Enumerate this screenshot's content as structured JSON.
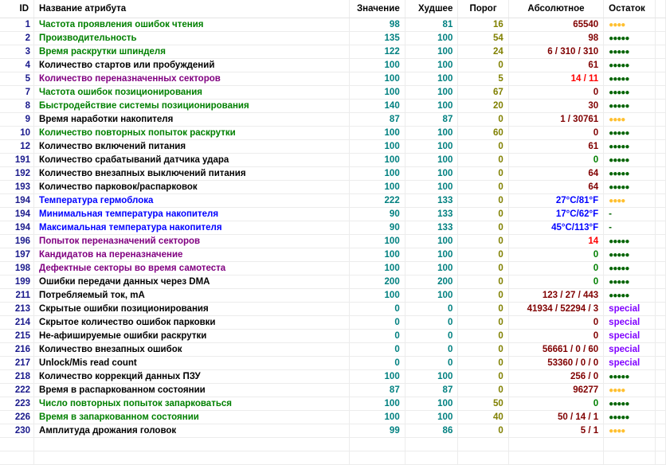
{
  "columns": {
    "id": "ID",
    "name": "Название атрибута",
    "value": "Значение",
    "worst": "Худшее",
    "threshold": "Порог",
    "raw": "Абсолютное",
    "remaining": "Остаток"
  },
  "colors": {
    "green_name": "#008000",
    "purple_name": "#800080",
    "blue_name": "#0000ff",
    "value": "#008080",
    "threshold": "#808000",
    "raw": "#800000",
    "good_dots": "#006400",
    "warn_dots": "#ffc030",
    "special": "#8000ff"
  },
  "rows": [
    {
      "id": "1",
      "name": "Частота проявления ошибок чтения",
      "nc": "green",
      "value": "98",
      "worst": "81",
      "threshold": "16",
      "raw": "65540",
      "rc": "dark",
      "rest": "●●●●",
      "rs": "orange"
    },
    {
      "id": "2",
      "name": "Производительность",
      "nc": "green",
      "value": "135",
      "worst": "100",
      "threshold": "54",
      "raw": "98",
      "rc": "dark",
      "rest": "●●●●●",
      "rs": "green"
    },
    {
      "id": "3",
      "name": "Время раскрутки шпинделя",
      "nc": "green",
      "value": "122",
      "worst": "100",
      "threshold": "24",
      "raw": "6 / 310 / 310",
      "rc": "dark",
      "rest": "●●●●●",
      "rs": "green"
    },
    {
      "id": "4",
      "name": "Количество стартов или пробуждений",
      "nc": "black",
      "value": "100",
      "worst": "100",
      "threshold": "0",
      "raw": "61",
      "rc": "dark",
      "rest": "●●●●●",
      "rs": "green"
    },
    {
      "id": "5",
      "name": "Количество переназначенных секторов",
      "nc": "purple",
      "value": "100",
      "worst": "100",
      "threshold": "5",
      "raw": "14 / 11",
      "rc": "red",
      "rest": "●●●●●",
      "rs": "green"
    },
    {
      "id": "7",
      "name": "Частота ошибок позиционирования",
      "nc": "green",
      "value": "100",
      "worst": "100",
      "threshold": "67",
      "raw": "0",
      "rc": "dark",
      "rest": "●●●●●",
      "rs": "green"
    },
    {
      "id": "8",
      "name": "Быстродействие системы позиционирования",
      "nc": "green",
      "value": "140",
      "worst": "100",
      "threshold": "20",
      "raw": "30",
      "rc": "dark",
      "rest": "●●●●●",
      "rs": "green"
    },
    {
      "id": "9",
      "name": "Время наработки накопителя",
      "nc": "black",
      "value": "87",
      "worst": "87",
      "threshold": "0",
      "raw": "1 / 30761",
      "rc": "dark",
      "rest": "●●●●",
      "rs": "orange"
    },
    {
      "id": "10",
      "name": "Количество повторных попыток раскрутки",
      "nc": "green",
      "value": "100",
      "worst": "100",
      "threshold": "60",
      "raw": "0",
      "rc": "dark",
      "rest": "●●●●●",
      "rs": "green"
    },
    {
      "id": "12",
      "name": "Количество включений питания",
      "nc": "black",
      "value": "100",
      "worst": "100",
      "threshold": "0",
      "raw": "61",
      "rc": "dark",
      "rest": "●●●●●",
      "rs": "green"
    },
    {
      "id": "191",
      "name": "Количество срабатываний датчика удара",
      "nc": "black",
      "value": "100",
      "worst": "100",
      "threshold": "0",
      "raw": "0",
      "rc": "green",
      "rest": "●●●●●",
      "rs": "green"
    },
    {
      "id": "192",
      "name": "Количество внезапных выключений питания",
      "nc": "black",
      "value": "100",
      "worst": "100",
      "threshold": "0",
      "raw": "64",
      "rc": "dark",
      "rest": "●●●●●",
      "rs": "green"
    },
    {
      "id": "193",
      "name": "Количество парковок/распарковок",
      "nc": "black",
      "value": "100",
      "worst": "100",
      "threshold": "0",
      "raw": "64",
      "rc": "dark",
      "rest": "●●●●●",
      "rs": "green"
    },
    {
      "id": "194",
      "name": "Температура гермоблока",
      "nc": "blue",
      "value": "222",
      "worst": "133",
      "threshold": "0",
      "raw": "27°C/81°F",
      "rc": "blue",
      "rest": "●●●●",
      "rs": "orange"
    },
    {
      "id": "194",
      "name": "Минимальная температура накопителя",
      "nc": "blue",
      "value": "90",
      "worst": "133",
      "threshold": "0",
      "raw": "17°C/62°F",
      "rc": "blue",
      "rest": "-",
      "rs": "dash"
    },
    {
      "id": "194",
      "name": "Максимальная температура накопителя",
      "nc": "blue",
      "value": "90",
      "worst": "133",
      "threshold": "0",
      "raw": "45°C/113°F",
      "rc": "blue",
      "rest": "-",
      "rs": "dash"
    },
    {
      "id": "196",
      "name": "Попыток переназначений секторов",
      "nc": "purple",
      "value": "100",
      "worst": "100",
      "threshold": "0",
      "raw": "14",
      "rc": "red",
      "rest": "●●●●●",
      "rs": "green"
    },
    {
      "id": "197",
      "name": "Кандидатов на переназначение",
      "nc": "purple",
      "value": "100",
      "worst": "100",
      "threshold": "0",
      "raw": "0",
      "rc": "green",
      "rest": "●●●●●",
      "rs": "green"
    },
    {
      "id": "198",
      "name": "Дефектные секторы во время самотеста",
      "nc": "purple",
      "value": "100",
      "worst": "100",
      "threshold": "0",
      "raw": "0",
      "rc": "green",
      "rest": "●●●●●",
      "rs": "green"
    },
    {
      "id": "199",
      "name": "Ошибки передачи данных через DMA",
      "nc": "black",
      "value": "200",
      "worst": "200",
      "threshold": "0",
      "raw": "0",
      "rc": "green",
      "rest": "●●●●●",
      "rs": "green"
    },
    {
      "id": "211",
      "name": "Потребляемый ток, mA",
      "nc": "black",
      "value": "100",
      "worst": "100",
      "threshold": "0",
      "raw": "123 / 27 / 443",
      "rc": "dark",
      "rest": "●●●●●",
      "rs": "green"
    },
    {
      "id": "213",
      "name": "Скрытые ошибки позиционирования",
      "nc": "black",
      "value": "0",
      "worst": "0",
      "threshold": "0",
      "raw": "41934 / 52294 / 3",
      "rc": "dark",
      "rest": "special",
      "rs": "special"
    },
    {
      "id": "214",
      "name": "Скрытое количество ошибок парковки",
      "nc": "black",
      "value": "0",
      "worst": "0",
      "threshold": "0",
      "raw": "0",
      "rc": "dark",
      "rest": "special",
      "rs": "special"
    },
    {
      "id": "215",
      "name": "Не-афишируемые ошибки раскрутки",
      "nc": "black",
      "value": "0",
      "worst": "0",
      "threshold": "0",
      "raw": "0",
      "rc": "dark",
      "rest": "special",
      "rs": "special"
    },
    {
      "id": "216",
      "name": "Количество внезапных ошибок",
      "nc": "black",
      "value": "0",
      "worst": "0",
      "threshold": "0",
      "raw": "56661 / 0 / 60",
      "rc": "dark",
      "rest": "special",
      "rs": "special"
    },
    {
      "id": "217",
      "name": "Unlock/Mis read count",
      "nc": "black",
      "value": "0",
      "worst": "0",
      "threshold": "0",
      "raw": "53360 / 0 / 0",
      "rc": "dark",
      "rest": "special",
      "rs": "special"
    },
    {
      "id": "218",
      "name": "Количество коррекций данных ПЗУ",
      "nc": "black",
      "value": "100",
      "worst": "100",
      "threshold": "0",
      "raw": "256 / 0",
      "rc": "dark",
      "rest": "●●●●●",
      "rs": "green"
    },
    {
      "id": "222",
      "name": "Время в распаркованном состоянии",
      "nc": "black",
      "value": "87",
      "worst": "87",
      "threshold": "0",
      "raw": "96277",
      "rc": "dark",
      "rest": "●●●●",
      "rs": "orange"
    },
    {
      "id": "223",
      "name": "Число повторных попыток запарковаться",
      "nc": "green",
      "value": "100",
      "worst": "100",
      "threshold": "50",
      "raw": "0",
      "rc": "green",
      "rest": "●●●●●",
      "rs": "green"
    },
    {
      "id": "226",
      "name": "Время в запаркованном состоянии",
      "nc": "green",
      "value": "100",
      "worst": "100",
      "threshold": "40",
      "raw": "50 / 14 / 1",
      "rc": "dark",
      "rest": "●●●●●",
      "rs": "green"
    },
    {
      "id": "230",
      "name": "Амплитуда дрожания головок",
      "nc": "black",
      "value": "99",
      "worst": "86",
      "threshold": "0",
      "raw": "5 / 1",
      "rc": "dark",
      "rest": "●●●●",
      "rs": "orange"
    }
  ]
}
